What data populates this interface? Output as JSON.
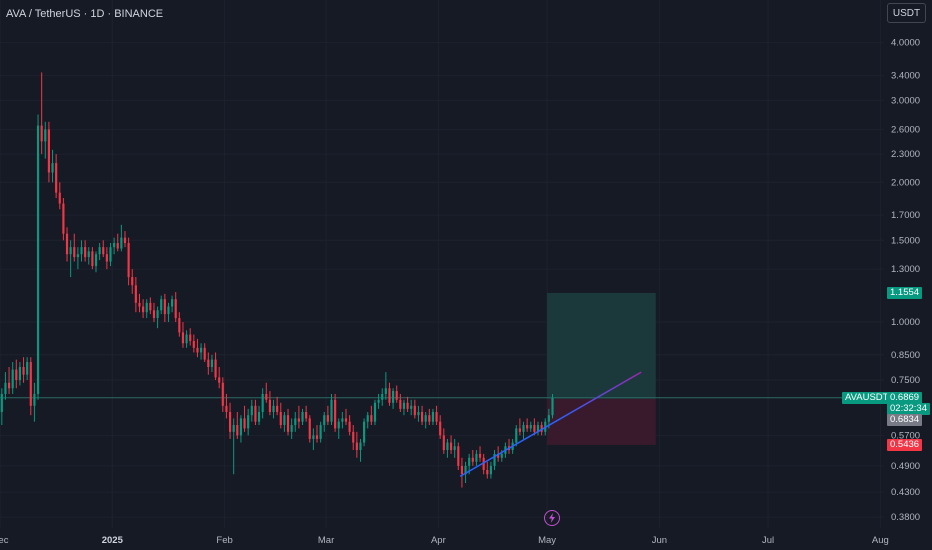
{
  "header": {
    "symbol_title": "AVA / TetherUS · 1D · BINANCE",
    "currency_button": "USDT"
  },
  "price_scale": {
    "ticks": [
      "4.0000",
      "3.4000",
      "3.0000",
      "2.6000",
      "2.3000",
      "2.0000",
      "1.7000",
      "1.5000",
      "1.3000",
      "1.0000",
      "0.8500",
      "0.7500",
      "0.5700",
      "0.4900",
      "0.4300",
      "0.3800"
    ],
    "scale_type": "logarithmic"
  },
  "time_axis": {
    "labels": [
      "Dec",
      "2025",
      "Feb",
      "Mar",
      "Apr",
      "May",
      "Jun",
      "Jul",
      "Aug"
    ],
    "bold_label": "2025"
  },
  "price_tags": {
    "target": {
      "value": "1.1554",
      "color": "#089981"
    },
    "symbol": {
      "name": "AVAUSDT",
      "price": "0.6869",
      "countdown": "02:32:34",
      "color": "#089981"
    },
    "entry": {
      "value": "0.6834",
      "color": "#787b86"
    },
    "stop": {
      "value": "0.5436",
      "color": "#f23645"
    }
  },
  "colors": {
    "up": "#089981",
    "down": "#f23645",
    "background": "#161a25",
    "trendline_start": "#2962ff",
    "trendline_end": "#9c27b0",
    "profit_zone": "#1b3b3b",
    "loss_zone": "#3a1a2c"
  },
  "icons": {
    "realtime": "lightning-icon"
  },
  "chart_data": {
    "type": "candlestick",
    "symbol": "AVAUSDT",
    "interval": "1D",
    "exchange": "BINANCE",
    "scale": "log",
    "y_range": [
      0.36,
      4.3
    ],
    "x_range": [
      "2024-12-01",
      "2025-08-02"
    ],
    "last_price": 0.6869,
    "position": {
      "type": "long",
      "entry": 0.6834,
      "target": 1.1554,
      "stop": 0.5436,
      "start": "2025-05-01",
      "end": "2025-05-31"
    },
    "trendline": {
      "from": {
        "date": "2025-04-07",
        "price": 0.465
      },
      "to": {
        "date": "2025-05-27",
        "price": 0.78
      }
    },
    "candles": [
      [
        "2024-12-01",
        0.64,
        0.72,
        0.6,
        0.7
      ],
      [
        "2024-12-02",
        0.7,
        0.78,
        0.68,
        0.74
      ],
      [
        "2024-12-03",
        0.74,
        0.8,
        0.7,
        0.72
      ],
      [
        "2024-12-04",
        0.72,
        0.82,
        0.7,
        0.79
      ],
      [
        "2024-12-05",
        0.79,
        0.83,
        0.72,
        0.75
      ],
      [
        "2024-12-06",
        0.75,
        0.82,
        0.73,
        0.8
      ],
      [
        "2024-12-07",
        0.8,
        0.84,
        0.74,
        0.77
      ],
      [
        "2024-12-08",
        0.77,
        0.84,
        0.75,
        0.82
      ],
      [
        "2024-12-09",
        0.82,
        0.84,
        0.63,
        0.66
      ],
      [
        "2024-12-10",
        0.66,
        0.74,
        0.61,
        0.7
      ],
      [
        "2024-12-11",
        0.7,
        2.8,
        0.68,
        2.65
      ],
      [
        "2024-12-12",
        2.65,
        3.45,
        2.3,
        2.45
      ],
      [
        "2024-12-13",
        2.45,
        2.7,
        2.25,
        2.6
      ],
      [
        "2024-12-14",
        2.6,
        2.7,
        2.0,
        2.1
      ],
      [
        "2024-12-15",
        2.1,
        2.35,
        2.0,
        2.2
      ],
      [
        "2024-12-16",
        2.2,
        2.3,
        1.85,
        1.9
      ],
      [
        "2024-12-17",
        1.9,
        2.0,
        1.75,
        1.8
      ],
      [
        "2024-12-18",
        1.8,
        1.85,
        1.5,
        1.55
      ],
      [
        "2024-12-19",
        1.55,
        1.6,
        1.35,
        1.4
      ],
      [
        "2024-12-20",
        1.4,
        1.5,
        1.25,
        1.45
      ],
      [
        "2024-12-21",
        1.45,
        1.55,
        1.35,
        1.38
      ],
      [
        "2024-12-22",
        1.38,
        1.45,
        1.3,
        1.4
      ],
      [
        "2024-12-23",
        1.4,
        1.5,
        1.35,
        1.45
      ],
      [
        "2024-12-24",
        1.45,
        1.5,
        1.35,
        1.38
      ],
      [
        "2024-12-25",
        1.38,
        1.45,
        1.33,
        1.42
      ],
      [
        "2024-12-26",
        1.42,
        1.45,
        1.3,
        1.32
      ],
      [
        "2024-12-27",
        1.32,
        1.42,
        1.28,
        1.4
      ],
      [
        "2024-12-28",
        1.4,
        1.48,
        1.36,
        1.45
      ],
      [
        "2024-12-29",
        1.45,
        1.5,
        1.38,
        1.4
      ],
      [
        "2024-12-30",
        1.4,
        1.45,
        1.3,
        1.35
      ],
      [
        "2024-12-31",
        1.35,
        1.48,
        1.32,
        1.45
      ],
      [
        "2025-01-01",
        1.45,
        1.52,
        1.4,
        1.48
      ],
      [
        "2025-01-02",
        1.48,
        1.55,
        1.42,
        1.44
      ],
      [
        "2025-01-03",
        1.44,
        1.62,
        1.42,
        1.52
      ],
      [
        "2025-01-04",
        1.52,
        1.57,
        1.45,
        1.48
      ],
      [
        "2025-01-05",
        1.48,
        1.52,
        1.2,
        1.25
      ],
      [
        "2025-01-06",
        1.25,
        1.3,
        1.15,
        1.2
      ],
      [
        "2025-01-07",
        1.2,
        1.25,
        1.05,
        1.1
      ],
      [
        "2025-01-08",
        1.1,
        1.15,
        1.05,
        1.08
      ],
      [
        "2025-01-09",
        1.08,
        1.12,
        1.02,
        1.05
      ],
      [
        "2025-01-10",
        1.05,
        1.12,
        1.02,
        1.1
      ],
      [
        "2025-01-11",
        1.1,
        1.13,
        1.04,
        1.06
      ],
      [
        "2025-01-12",
        1.06,
        1.1,
        1.0,
        1.02
      ],
      [
        "2025-01-13",
        1.02,
        1.08,
        0.97,
        1.06
      ],
      [
        "2025-01-14",
        1.06,
        1.14,
        1.04,
        1.12
      ],
      [
        "2025-01-15",
        1.12,
        1.15,
        1.0,
        1.04
      ],
      [
        "2025-01-16",
        1.04,
        1.1,
        1.0,
        1.08
      ],
      [
        "2025-01-17",
        1.08,
        1.14,
        1.05,
        1.12
      ],
      [
        "2025-01-18",
        1.12,
        1.16,
        1.0,
        1.02
      ],
      [
        "2025-01-19",
        1.02,
        1.05,
        0.93,
        0.95
      ],
      [
        "2025-01-20",
        0.95,
        1.0,
        0.88,
        0.9
      ],
      [
        "2025-01-21",
        0.9,
        0.96,
        0.88,
        0.94
      ],
      [
        "2025-01-22",
        0.94,
        0.97,
        0.89,
        0.91
      ],
      [
        "2025-01-23",
        0.91,
        0.94,
        0.86,
        0.88
      ],
      [
        "2025-01-24",
        0.88,
        0.92,
        0.84,
        0.86
      ],
      [
        "2025-01-25",
        0.86,
        0.9,
        0.83,
        0.88
      ],
      [
        "2025-01-26",
        0.88,
        0.9,
        0.82,
        0.83
      ],
      [
        "2025-01-27",
        0.83,
        0.86,
        0.77,
        0.8
      ],
      [
        "2025-01-28",
        0.8,
        0.85,
        0.78,
        0.83
      ],
      [
        "2025-01-29",
        0.83,
        0.86,
        0.75,
        0.76
      ],
      [
        "2025-01-30",
        0.76,
        0.8,
        0.72,
        0.74
      ],
      [
        "2025-01-31",
        0.74,
        0.76,
        0.64,
        0.66
      ],
      [
        "2025-02-01",
        0.66,
        0.7,
        0.62,
        0.64
      ],
      [
        "2025-02-02",
        0.64,
        0.67,
        0.56,
        0.58
      ],
      [
        "2025-02-03",
        0.58,
        0.62,
        0.47,
        0.6
      ],
      [
        "2025-02-04",
        0.6,
        0.64,
        0.56,
        0.57
      ],
      [
        "2025-02-05",
        0.57,
        0.63,
        0.55,
        0.62
      ],
      [
        "2025-02-06",
        0.62,
        0.66,
        0.58,
        0.59
      ],
      [
        "2025-02-07",
        0.59,
        0.65,
        0.57,
        0.63
      ],
      [
        "2025-02-08",
        0.63,
        0.68,
        0.61,
        0.66
      ],
      [
        "2025-02-09",
        0.66,
        0.68,
        0.6,
        0.61
      ],
      [
        "2025-02-10",
        0.61,
        0.66,
        0.6,
        0.64
      ],
      [
        "2025-02-11",
        0.64,
        0.72,
        0.62,
        0.7
      ],
      [
        "2025-02-12",
        0.7,
        0.74,
        0.67,
        0.68
      ],
      [
        "2025-02-13",
        0.68,
        0.71,
        0.63,
        0.64
      ],
      [
        "2025-02-14",
        0.64,
        0.68,
        0.62,
        0.66
      ],
      [
        "2025-02-15",
        0.66,
        0.69,
        0.63,
        0.64
      ],
      [
        "2025-02-16",
        0.64,
        0.67,
        0.59,
        0.6
      ],
      [
        "2025-02-17",
        0.6,
        0.64,
        0.58,
        0.63
      ],
      [
        "2025-02-18",
        0.63,
        0.65,
        0.57,
        0.58
      ],
      [
        "2025-02-19",
        0.58,
        0.62,
        0.56,
        0.6
      ],
      [
        "2025-02-20",
        0.6,
        0.64,
        0.58,
        0.62
      ],
      [
        "2025-02-21",
        0.62,
        0.66,
        0.59,
        0.61
      ],
      [
        "2025-02-22",
        0.61,
        0.65,
        0.6,
        0.64
      ],
      [
        "2025-02-23",
        0.64,
        0.66,
        0.61,
        0.62
      ],
      [
        "2025-02-24",
        0.62,
        0.63,
        0.55,
        0.56
      ],
      [
        "2025-02-25",
        0.56,
        0.59,
        0.53,
        0.57
      ],
      [
        "2025-02-26",
        0.57,
        0.6,
        0.55,
        0.56
      ],
      [
        "2025-02-27",
        0.56,
        0.61,
        0.55,
        0.6
      ],
      [
        "2025-02-28",
        0.6,
        0.64,
        0.58,
        0.63
      ],
      [
        "2025-03-01",
        0.63,
        0.66,
        0.6,
        0.61
      ],
      [
        "2025-03-02",
        0.61,
        0.7,
        0.6,
        0.68
      ],
      [
        "2025-03-03",
        0.68,
        0.7,
        0.58,
        0.59
      ],
      [
        "2025-03-04",
        0.59,
        0.62,
        0.56,
        0.61
      ],
      [
        "2025-03-05",
        0.61,
        0.64,
        0.59,
        0.62
      ],
      [
        "2025-03-06",
        0.62,
        0.65,
        0.6,
        0.61
      ],
      [
        "2025-03-07",
        0.61,
        0.63,
        0.57,
        0.58
      ],
      [
        "2025-03-08",
        0.58,
        0.6,
        0.53,
        0.55
      ],
      [
        "2025-03-09",
        0.55,
        0.58,
        0.51,
        0.53
      ],
      [
        "2025-03-10",
        0.53,
        0.56,
        0.5,
        0.55
      ],
      [
        "2025-03-11",
        0.55,
        0.62,
        0.54,
        0.61
      ],
      [
        "2025-03-12",
        0.61,
        0.64,
        0.59,
        0.63
      ],
      [
        "2025-03-13",
        0.63,
        0.66,
        0.6,
        0.61
      ],
      [
        "2025-03-14",
        0.61,
        0.68,
        0.6,
        0.67
      ],
      [
        "2025-03-15",
        0.67,
        0.7,
        0.65,
        0.68
      ],
      [
        "2025-03-16",
        0.68,
        0.72,
        0.66,
        0.7
      ],
      [
        "2025-03-17",
        0.7,
        0.78,
        0.68,
        0.72
      ],
      [
        "2025-03-18",
        0.72,
        0.74,
        0.66,
        0.67
      ],
      [
        "2025-03-19",
        0.67,
        0.72,
        0.65,
        0.71
      ],
      [
        "2025-03-20",
        0.71,
        0.73,
        0.67,
        0.68
      ],
      [
        "2025-03-21",
        0.68,
        0.7,
        0.64,
        0.65
      ],
      [
        "2025-03-22",
        0.65,
        0.68,
        0.63,
        0.67
      ],
      [
        "2025-03-23",
        0.67,
        0.69,
        0.64,
        0.65
      ],
      [
        "2025-03-24",
        0.65,
        0.68,
        0.63,
        0.66
      ],
      [
        "2025-03-25",
        0.66,
        0.68,
        0.62,
        0.63
      ],
      [
        "2025-03-26",
        0.63,
        0.66,
        0.61,
        0.64
      ],
      [
        "2025-03-27",
        0.64,
        0.66,
        0.6,
        0.61
      ],
      [
        "2025-03-28",
        0.61,
        0.64,
        0.59,
        0.63
      ],
      [
        "2025-03-29",
        0.63,
        0.65,
        0.6,
        0.61
      ],
      [
        "2025-03-30",
        0.61,
        0.65,
        0.6,
        0.64
      ],
      [
        "2025-03-31",
        0.64,
        0.66,
        0.6,
        0.61
      ],
      [
        "2025-04-01",
        0.61,
        0.63,
        0.56,
        0.57
      ],
      [
        "2025-04-02",
        0.57,
        0.59,
        0.52,
        0.53
      ],
      [
        "2025-04-03",
        0.53,
        0.56,
        0.51,
        0.55
      ],
      [
        "2025-04-04",
        0.55,
        0.57,
        0.52,
        0.53
      ],
      [
        "2025-04-05",
        0.53,
        0.56,
        0.51,
        0.54
      ],
      [
        "2025-04-06",
        0.54,
        0.55,
        0.48,
        0.49
      ],
      [
        "2025-04-07",
        0.49,
        0.51,
        0.44,
        0.47
      ],
      [
        "2025-04-08",
        0.47,
        0.5,
        0.45,
        0.49
      ],
      [
        "2025-04-09",
        0.49,
        0.52,
        0.47,
        0.51
      ],
      [
        "2025-04-10",
        0.51,
        0.53,
        0.49,
        0.5
      ],
      [
        "2025-04-11",
        0.5,
        0.53,
        0.49,
        0.52
      ],
      [
        "2025-04-12",
        0.52,
        0.54,
        0.5,
        0.51
      ],
      [
        "2025-04-13",
        0.51,
        0.52,
        0.47,
        0.48
      ],
      [
        "2025-04-14",
        0.48,
        0.5,
        0.46,
        0.47
      ],
      [
        "2025-04-15",
        0.47,
        0.5,
        0.46,
        0.49
      ],
      [
        "2025-04-16",
        0.49,
        0.53,
        0.48,
        0.52
      ],
      [
        "2025-04-17",
        0.52,
        0.54,
        0.5,
        0.51
      ],
      [
        "2025-04-18",
        0.51,
        0.53,
        0.5,
        0.52
      ],
      [
        "2025-04-19",
        0.52,
        0.55,
        0.51,
        0.54
      ],
      [
        "2025-04-20",
        0.54,
        0.56,
        0.52,
        0.53
      ],
      [
        "2025-04-21",
        0.53,
        0.56,
        0.52,
        0.55
      ],
      [
        "2025-04-22",
        0.55,
        0.6,
        0.54,
        0.59
      ],
      [
        "2025-04-23",
        0.59,
        0.62,
        0.57,
        0.58
      ],
      [
        "2025-04-24",
        0.58,
        0.61,
        0.56,
        0.6
      ],
      [
        "2025-04-25",
        0.6,
        0.62,
        0.58,
        0.59
      ],
      [
        "2025-04-26",
        0.59,
        0.61,
        0.58,
        0.6
      ],
      [
        "2025-04-27",
        0.6,
        0.62,
        0.57,
        0.58
      ],
      [
        "2025-04-28",
        0.58,
        0.61,
        0.57,
        0.6
      ],
      [
        "2025-04-29",
        0.6,
        0.61,
        0.57,
        0.58
      ],
      [
        "2025-04-30",
        0.58,
        0.62,
        0.57,
        0.61
      ],
      [
        "2025-05-01",
        0.61,
        0.65,
        0.59,
        0.63
      ],
      [
        "2025-05-02",
        0.63,
        0.7,
        0.62,
        0.6869
      ]
    ]
  }
}
